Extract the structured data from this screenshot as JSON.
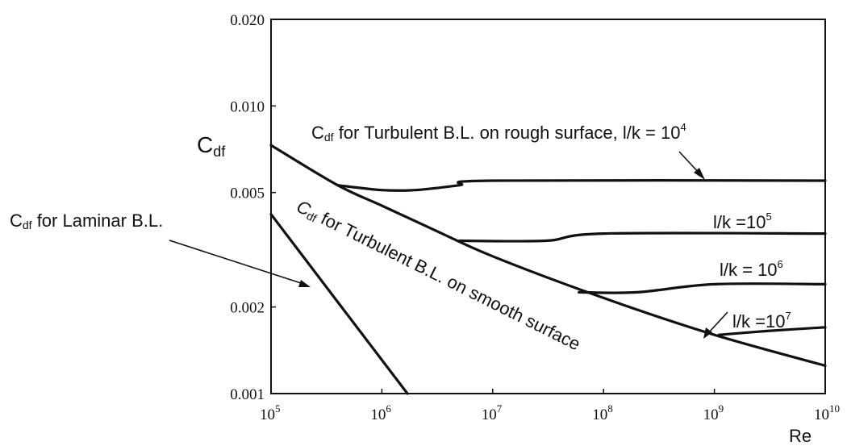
{
  "chart_data": {
    "type": "line",
    "xscale": "log",
    "yscale": "log",
    "xlim": [
      100000,
      10000000000
    ],
    "ylim": [
      0.001,
      0.02
    ],
    "grid": false,
    "xlabel": "Re",
    "ylabel": {
      "main": "C",
      "sub": "df"
    },
    "x_ticks": [
      {
        "value": 100000,
        "base": "10",
        "exp": "5"
      },
      {
        "value": 1000000,
        "base": "10",
        "exp": "6"
      },
      {
        "value": 10000000,
        "base": "10",
        "exp": "7"
      },
      {
        "value": 100000000,
        "base": "10",
        "exp": "8"
      },
      {
        "value": 1000000000,
        "base": "10",
        "exp": "9"
      },
      {
        "value": 10000000000,
        "base": "10",
        "exp": "10"
      }
    ],
    "y_ticks": [
      {
        "value": 0.001,
        "label": "0.001"
      },
      {
        "value": 0.002,
        "label": "0.002"
      },
      {
        "value": 0.005,
        "label": "0.005"
      },
      {
        "value": 0.01,
        "label": "0.010"
      },
      {
        "value": 0.02,
        "label": "0.020"
      }
    ],
    "series": [
      {
        "id": "laminar",
        "points": [
          [
            100000,
            0.0042
          ],
          [
            1700000,
            0.001
          ]
        ]
      },
      {
        "id": "turbulent-smooth",
        "points": [
          [
            100000,
            0.0073
          ],
          [
            400000,
            0.0053
          ],
          [
            1000000,
            0.0045
          ],
          [
            3000000,
            0.0037
          ],
          [
            10000000,
            0.003
          ],
          [
            100000000,
            0.00215
          ],
          [
            1000000000,
            0.0016
          ],
          [
            10000000000,
            0.00125
          ]
        ]
      },
      {
        "id": "rough-1e4",
        "points": [
          [
            400000,
            0.0053
          ],
          [
            1000000,
            0.0051
          ],
          [
            2000000,
            0.0051
          ],
          [
            5000000,
            0.0053
          ],
          [
            10000000,
            0.0055
          ],
          [
            10000000000,
            0.0055
          ]
        ]
      },
      {
        "id": "rough-1e5",
        "points": [
          [
            5000000,
            0.0034
          ],
          [
            30000000,
            0.0034
          ],
          [
            100000000,
            0.0036
          ],
          [
            10000000000,
            0.0036
          ]
        ]
      },
      {
        "id": "rough-1e6",
        "points": [
          [
            60000000,
            0.00225
          ],
          [
            200000000,
            0.00225
          ],
          [
            1000000000,
            0.0024
          ],
          [
            10000000000,
            0.0024
          ]
        ]
      },
      {
        "id": "rough-1e7",
        "points": [
          [
            1100000000,
            0.0016
          ],
          [
            3000000000,
            0.00165
          ],
          [
            10000000000,
            0.0017
          ]
        ]
      }
    ],
    "annotations": {
      "rough": {
        "c": "C",
        "sub": "df",
        "text": " for Turbulent B.L.  on rough surface, l/k = 10",
        "exp": "4"
      },
      "lk5": {
        "text": "l/k =10",
        "exp": "5"
      },
      "lk6": {
        "text": "l/k = 10",
        "exp": "6"
      },
      "lk7": {
        "text": "l/k =10",
        "exp": "7"
      },
      "laminar": {
        "c": "C",
        "sub": "df",
        "text": " for Laminar B.L."
      },
      "smooth": {
        "c": "C",
        "sub": "df",
        "text": " for Turbulent B.L.  on smooth surface"
      }
    }
  }
}
